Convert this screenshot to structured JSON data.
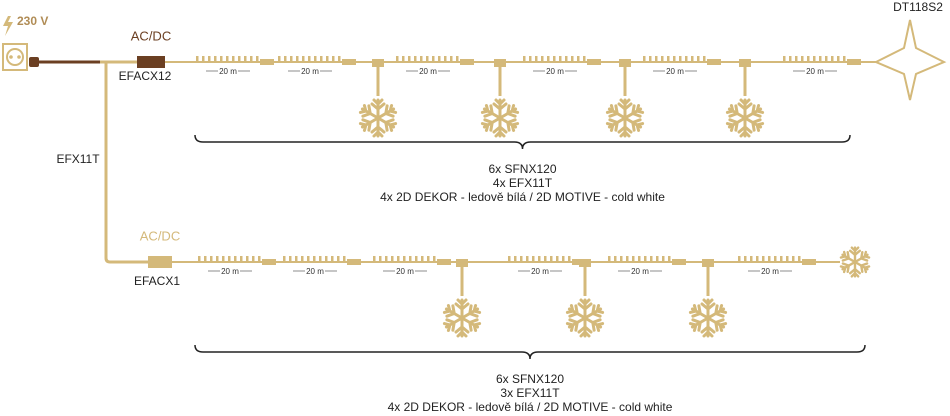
{
  "power": {
    "label": "230 V"
  },
  "end_decor_label": "DT118S2",
  "cable_label": "EFX11T",
  "rows": [
    {
      "converter_label": "AC/DC",
      "converter": "EFACX12",
      "segment_labels": [
        "20 m",
        "20 m",
        "20 m",
        "20 m",
        "20 m",
        "20 m"
      ],
      "brace_lines": [
        "6x SFNX120",
        "4x EFX11T",
        "4x 2D DEKOR - ledově bílá / 2D MOTIVE - cold white"
      ]
    },
    {
      "converter_label": "AC/DC",
      "converter": "EFACX1",
      "segment_labels": [
        "20 m",
        "20 m",
        "20 m",
        "20 m",
        "20 m",
        "20 m"
      ],
      "brace_lines": [
        "6x SFNX120",
        "3x EFX11T",
        "4x 2D DEKOR - ledově bílá / 2D MOTIVE - cold white"
      ]
    }
  ]
}
